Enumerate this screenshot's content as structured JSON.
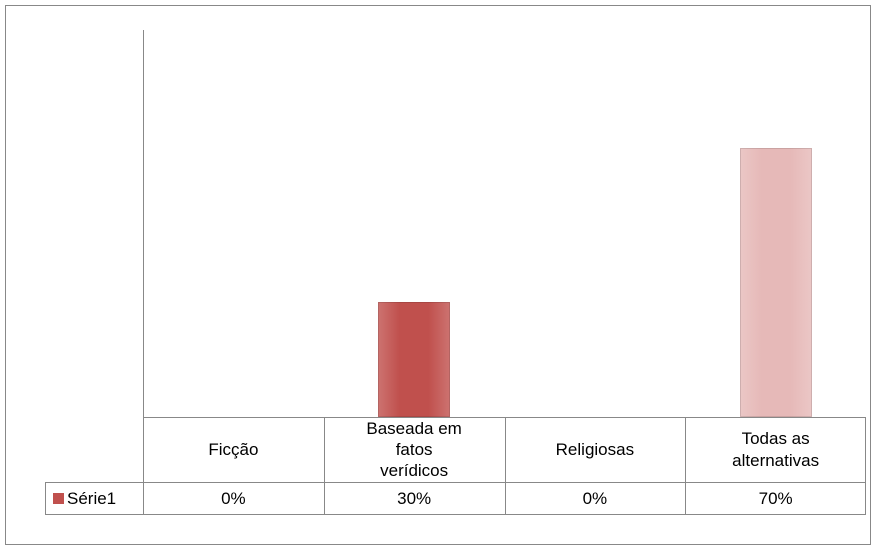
{
  "chart_data": {
    "type": "bar",
    "categories": [
      "Ficção",
      "Baseada em fatos verídicos",
      "Religiosas",
      "Todas as alternativas"
    ],
    "series": [
      {
        "name": "Série1",
        "color": "#c0504d",
        "colors": [
          "#c0504d",
          "#c0504d",
          "#c0504d",
          "#e6b9b8"
        ],
        "values": [
          0,
          30,
          0,
          70
        ],
        "value_labels": [
          "0%",
          "30%",
          "0%",
          "70%"
        ]
      }
    ],
    "legend": "table"
  }
}
